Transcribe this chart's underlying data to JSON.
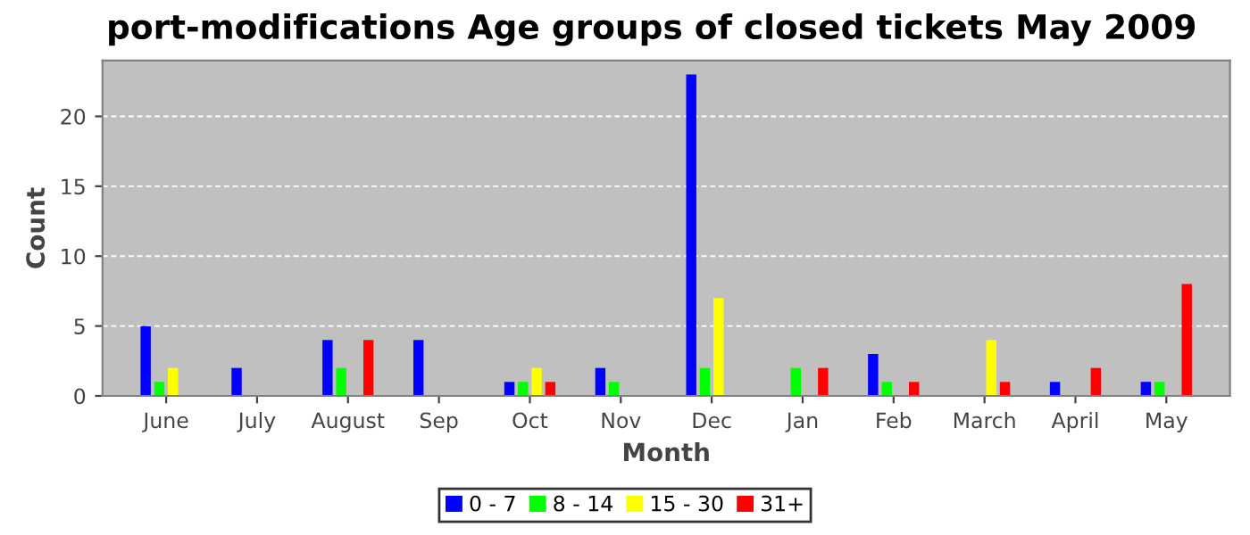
{
  "chart_data": {
    "type": "bar",
    "title": "port-modifications Age groups of closed tickets May 2009",
    "xlabel": "Month",
    "ylabel": "Count",
    "categories": [
      "June",
      "July",
      "August",
      "Sep",
      "Oct",
      "Nov",
      "Dec",
      "Jan",
      "Feb",
      "March",
      "April",
      "May"
    ],
    "series": [
      {
        "name": "0 - 7",
        "color": "#0000ff",
        "values": [
          5,
          2,
          4,
          4,
          1,
          2,
          23,
          0,
          3,
          0,
          1,
          1
        ]
      },
      {
        "name": "8 - 14",
        "color": "#00ff00",
        "values": [
          1,
          0,
          2,
          0,
          1,
          1,
          2,
          2,
          1,
          0,
          0,
          1
        ]
      },
      {
        "name": "15 - 30",
        "color": "#ffff00",
        "values": [
          2,
          0,
          0,
          0,
          2,
          0,
          7,
          0,
          0,
          4,
          0,
          0
        ]
      },
      {
        "name": "31+",
        "color": "#ff0000",
        "values": [
          0,
          0,
          4,
          0,
          1,
          0,
          0,
          2,
          1,
          1,
          2,
          8
        ]
      }
    ],
    "ylim": [
      0,
      24
    ],
    "yticks": [
      0,
      5,
      10,
      15,
      20
    ],
    "grid": "y",
    "legend": "bottom"
  }
}
